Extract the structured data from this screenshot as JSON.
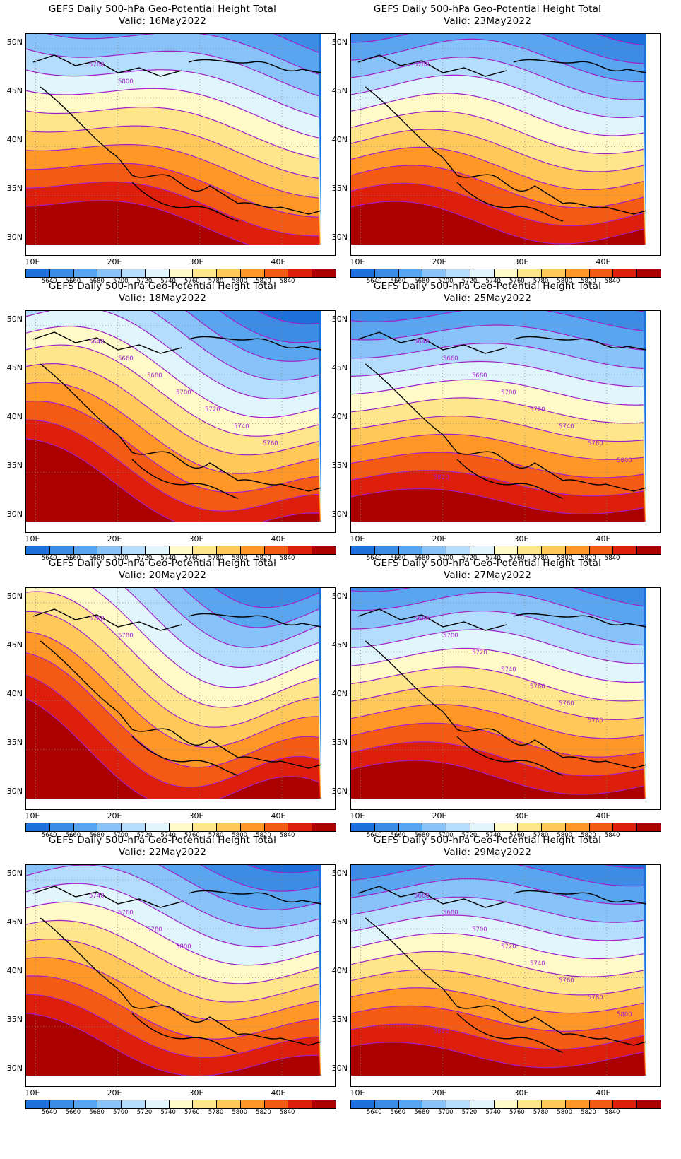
{
  "panels": [
    {
      "title": "GEFS Daily 500-hPa Geo-Potential Height Total",
      "valid": "Valid: 16May2022",
      "contour_labels": [
        "5780",
        "5800"
      ]
    },
    {
      "title": "GEFS Daily 500-hPa Geo-Potential Height Total",
      "valid": "Valid: 23May2022",
      "contour_labels": [
        "5780"
      ]
    },
    {
      "title": "GEFS Daily 500-hPa Geo-Potential Height Total",
      "valid": "Valid: 18May2022",
      "contour_labels": [
        "5640",
        "5660",
        "5680",
        "5700",
        "5720",
        "5740",
        "5760"
      ]
    },
    {
      "title": "GEFS Daily 500-hPa Geo-Potential Height Total",
      "valid": "Valid: 25May2022",
      "contour_labels": [
        "5640",
        "5660",
        "5680",
        "5700",
        "5720",
        "5740",
        "5760",
        "5800",
        "5820"
      ]
    },
    {
      "title": "GEFS Daily 500-hPa Geo-Potential Height Total",
      "valid": "Valid: 20May2022",
      "contour_labels": [
        "5760",
        "5780"
      ]
    },
    {
      "title": "GEFS Daily 500-hPa Geo-Potential Height Total",
      "valid": "Valid: 27May2022",
      "contour_labels": [
        "5680",
        "5700",
        "5720",
        "5740",
        "5760",
        "5760",
        "5780"
      ]
    },
    {
      "title": "GEFS Daily 500-hPa Geo-Potential Height Total",
      "valid": "Valid: 22May2022",
      "contour_labels": [
        "5740",
        "5760",
        "5780",
        "5800"
      ]
    },
    {
      "title": "GEFS Daily 500-hPa Geo-Potential Height Total",
      "valid": "Valid: 29May2022",
      "contour_labels": [
        "5660",
        "5680",
        "5700",
        "5720",
        "5740",
        "5760",
        "5780",
        "5800",
        "5820"
      ]
    }
  ],
  "lat_ticks": [
    "50N",
    "45N",
    "40N",
    "35N",
    "30N"
  ],
  "lon_ticks": [
    "10E",
    "20E",
    "30E",
    "40E"
  ],
  "colorbar": {
    "labels": [
      "5640",
      "5660",
      "5680",
      "5700",
      "5720",
      "5740",
      "5760",
      "5780",
      "5800",
      "5820",
      "5840"
    ],
    "colors": [
      "#1e6fd9",
      "#3c8ce6",
      "#5aa5f0",
      "#87c3f8",
      "#b4dcfc",
      "#e1f5fc",
      "#fffac8",
      "#ffe68c",
      "#ffc85a",
      "#ff9628",
      "#f55a14",
      "#dc1e0a",
      "#aa0000"
    ]
  },
  "contour_line_color": "#a020c8"
}
